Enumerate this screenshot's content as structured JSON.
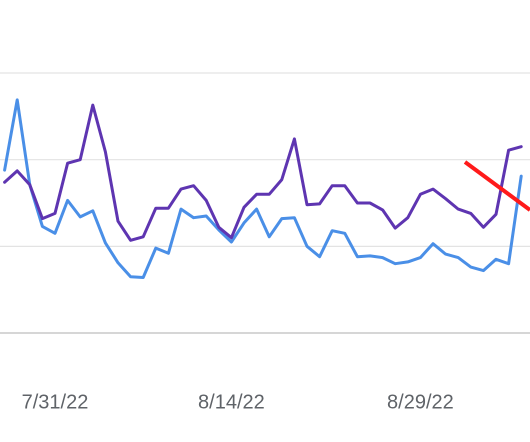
{
  "chart_data": {
    "type": "line",
    "categories": [
      null,
      null,
      null,
      null,
      "7/31/22",
      null,
      null,
      null,
      null,
      null,
      null,
      null,
      null,
      null,
      null,
      null,
      null,
      null,
      "8/14/22",
      null,
      null,
      null,
      null,
      null,
      null,
      null,
      null,
      null,
      null,
      null,
      null,
      null,
      null,
      "8/29/22",
      null,
      null,
      null,
      null,
      null,
      null,
      null,
      null
    ],
    "series": [
      {
        "color": "#4a8fe7",
        "values": [
          1.88,
          2.69,
          1.71,
          1.23,
          1.15,
          1.53,
          1.34,
          1.41,
          1.04,
          0.81,
          0.65,
          0.64,
          0.98,
          0.92,
          1.43,
          1.33,
          1.35,
          1.19,
          1.05,
          1.27,
          1.43,
          1.11,
          1.32,
          1.33,
          1.0,
          0.88,
          1.18,
          1.15,
          0.88,
          0.89,
          0.87,
          0.8,
          0.82,
          0.87,
          1.03,
          0.91,
          0.87,
          0.76,
          0.72,
          0.85,
          0.8,
          1.81
        ]
      },
      {
        "color": "#5e35b1",
        "values": [
          1.74,
          1.87,
          1.71,
          1.32,
          1.38,
          1.96,
          2.0,
          2.63,
          2.09,
          1.29,
          1.07,
          1.11,
          1.44,
          1.44,
          1.66,
          1.7,
          1.53,
          1.22,
          1.1,
          1.45,
          1.6,
          1.6,
          1.77,
          2.24,
          1.48,
          1.49,
          1.7,
          1.7,
          1.5,
          1.5,
          1.42,
          1.21,
          1.33,
          1.6,
          1.66,
          1.55,
          1.43,
          1.38,
          1.22,
          1.37,
          2.11,
          2.15
        ]
      }
    ],
    "ylim": [
      0,
      3.8
    ],
    "yticks": [
      0,
      1,
      2,
      3
    ],
    "grid": true,
    "ytick_labels": false
  }
}
